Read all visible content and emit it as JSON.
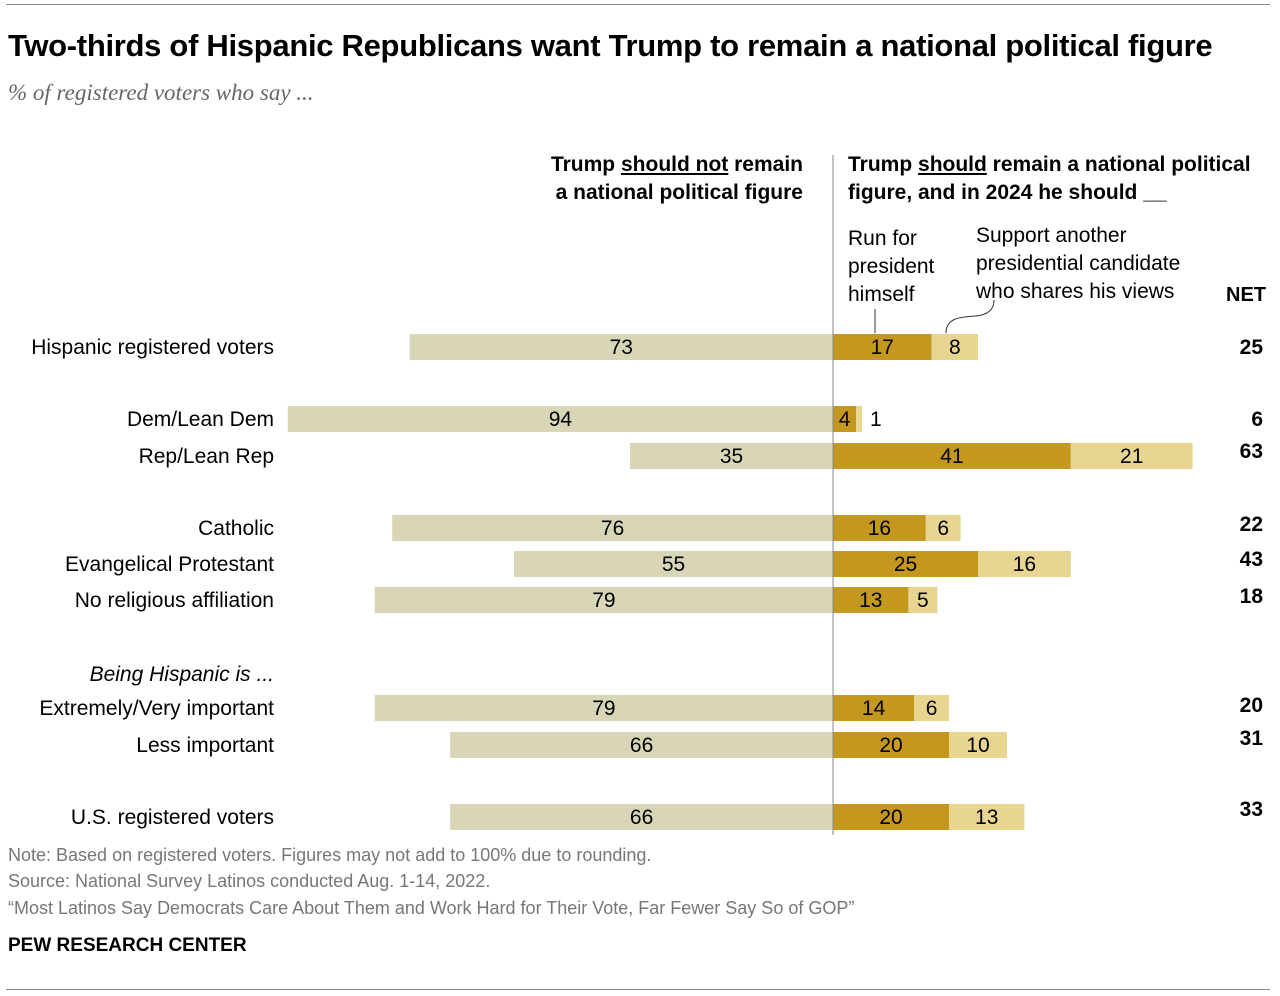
{
  "title": "Two-thirds of Hispanic Republicans want Trump to remain a national political figure",
  "subtitle": "% of registered voters who say ...",
  "headers": {
    "left_line1_a": "Trump ",
    "left_line1_u": "should not",
    "left_line1_b": " remain",
    "left_line2": "a national political figure",
    "right_line1_a": "Trump ",
    "right_line1_u": "should",
    "right_line1_b": " remain a national political",
    "right_line2": "figure, and in 2024 he should __",
    "run_label": [
      "Run for",
      "president",
      "himself"
    ],
    "support_label": [
      "Support another",
      "presidential candidate",
      "who shares his views"
    ],
    "net": "NET"
  },
  "footer": {
    "note": "Note: Based on registered voters. Figures may not add to 100% due to rounding.",
    "source": "Source: National Survey Latinos conducted Aug. 1-14, 2022.",
    "report": "“Most Latinos Say Democrats Care About Them and Work Hard for Their Vote, Far Fewer Say So of GOP”",
    "brand": "PEW RESEARCH CENTER"
  },
  "colors": {
    "should_not": "#d9d5b7",
    "run": "#c4981f",
    "support": "#e8d591"
  },
  "chart_data": {
    "type": "bar",
    "orientation": "horizontal diverging stacked",
    "group_label": "Being Hispanic is ...",
    "categories": [
      "Hispanic registered voters",
      "Dem/Lean Dem",
      "Rep/Lean Rep",
      "Catholic",
      "Evangelical Protestant",
      "No religious affiliation",
      "Extremely/Very important",
      "Less important",
      "U.S. registered voters"
    ],
    "series": [
      {
        "name": "Trump should not remain a national political figure",
        "values": [
          73,
          94,
          35,
          76,
          55,
          79,
          79,
          66,
          66
        ]
      },
      {
        "name": "Run for president himself",
        "values": [
          17,
          4,
          41,
          16,
          25,
          13,
          14,
          20,
          20
        ]
      },
      {
        "name": "Support another presidential candidate who shares his views",
        "values": [
          8,
          1,
          21,
          6,
          16,
          5,
          6,
          10,
          13
        ]
      }
    ],
    "net": [
      25,
      6,
      63,
      22,
      43,
      18,
      20,
      31,
      33
    ]
  }
}
